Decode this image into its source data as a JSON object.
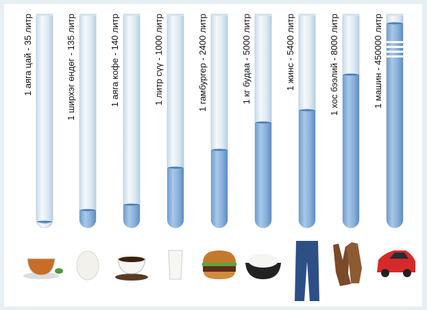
{
  "items": [
    {
      "label": "1 аяга цай - 35 литр"
    },
    {
      "label": "1 ширхэг өндөг - 135 литр"
    },
    {
      "label": "1 аяга кофе - 140 литр"
    },
    {
      "label": "1 литр сүү - 1000 литр"
    },
    {
      "label": "1 гамбургер - 2400 литр"
    },
    {
      "label": "1 кг будаа - 5000 литр"
    },
    {
      "label": "1 жинс - 5400 литр"
    },
    {
      "label": "1 хос бээлий - 8000 литр"
    },
    {
      "label": "1 машин - 450000 литр"
    }
  ]
}
